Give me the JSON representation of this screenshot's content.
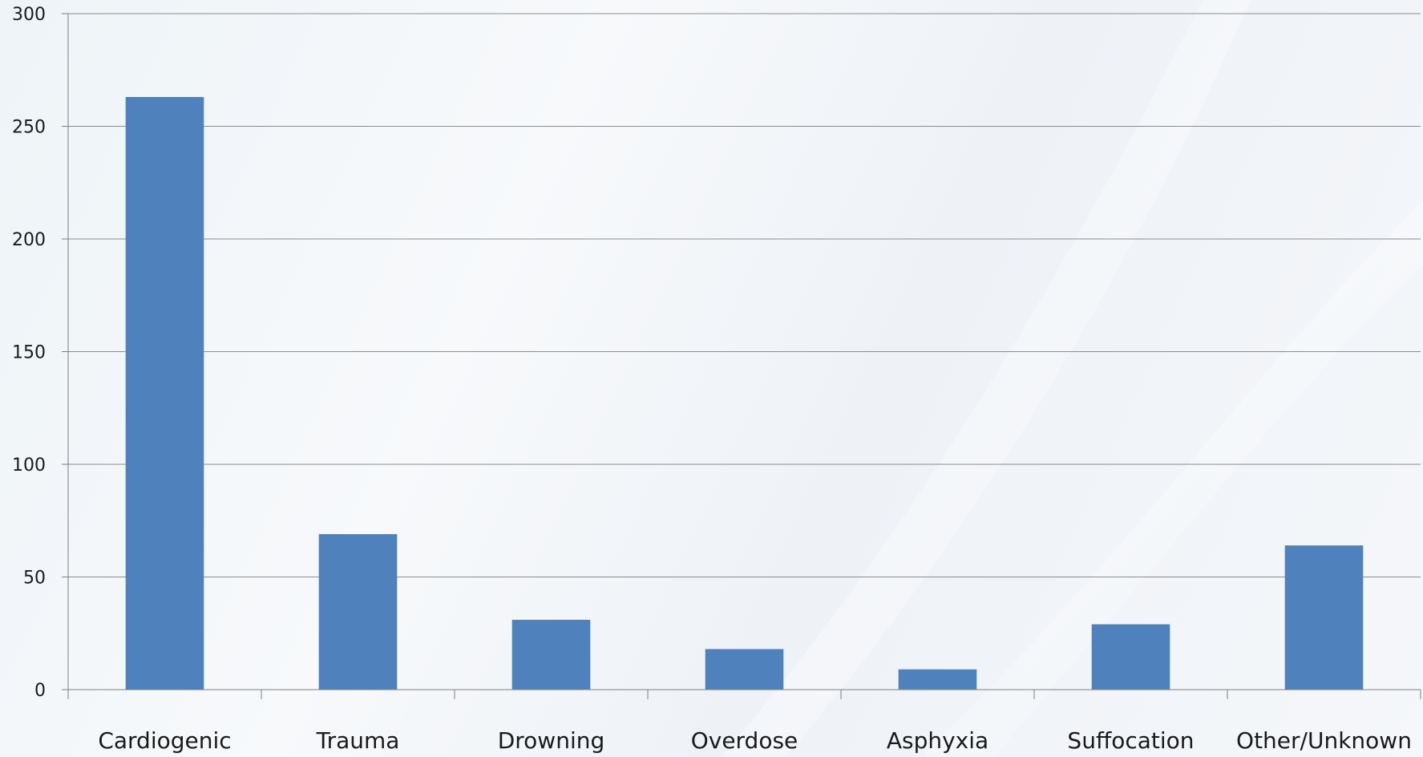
{
  "colors": {
    "bar": "#4f81bd",
    "grid": "#8c8c8c",
    "axis": "#7f7f7f",
    "text": "#1a1a1a"
  },
  "chart_data": {
    "type": "bar",
    "title": "",
    "xlabel": "",
    "ylabel": "",
    "categories": [
      "Cardiogenic",
      "Trauma",
      "Drowning",
      "Overdose",
      "Asphyxia",
      "Suffocation",
      "Other/Unknown"
    ],
    "values": [
      263,
      69,
      31,
      18,
      9,
      29,
      64
    ],
    "ylim": [
      0,
      300
    ],
    "yticks": [
      0,
      50,
      100,
      150,
      200,
      250,
      300
    ],
    "ytick_labels": [
      "0",
      "50",
      "100",
      "150",
      "200",
      "250",
      "300"
    ],
    "grid": true,
    "legend": "none"
  }
}
